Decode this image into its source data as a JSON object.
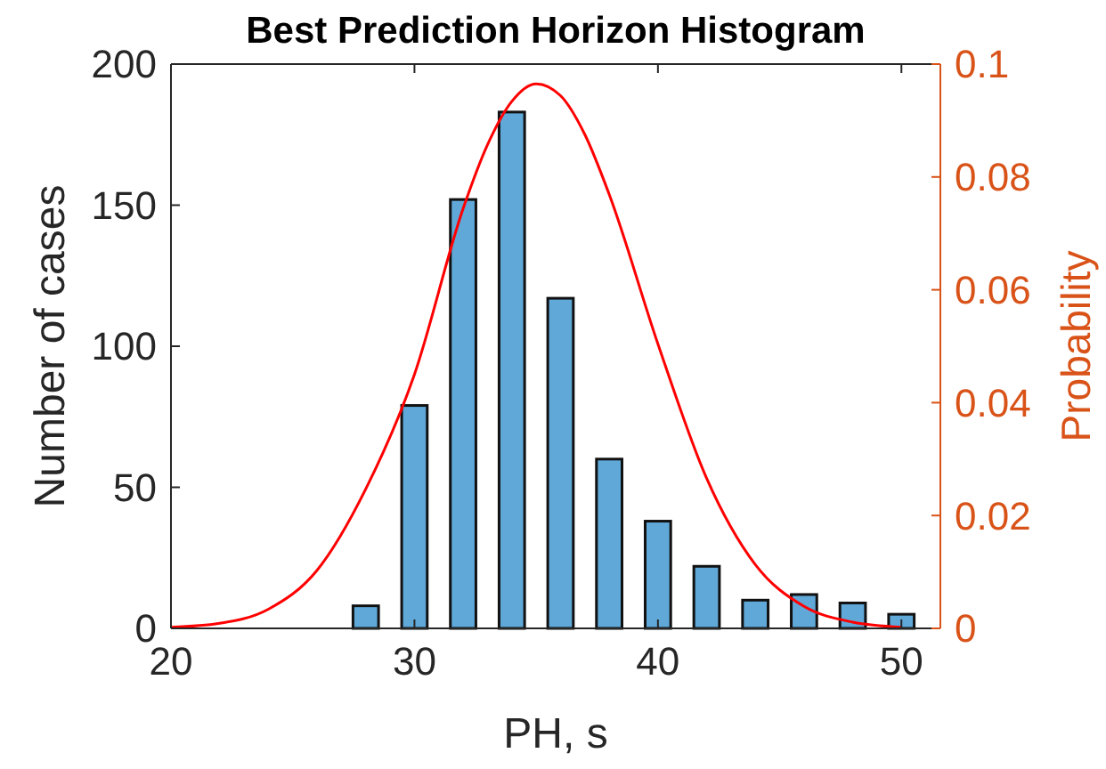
{
  "chart_data": {
    "type": "bar",
    "title": "Best Prediction Horizon Histogram",
    "xlabel": "PH, s",
    "ylabel": "Number of cases",
    "y2label": "Probability",
    "x": [
      28,
      30,
      32,
      34,
      36,
      38,
      40,
      42,
      44,
      46,
      48,
      50
    ],
    "xlim": [
      20,
      51.6
    ],
    "xticks": [
      20,
      30,
      40,
      50
    ],
    "ylim": [
      0,
      200
    ],
    "yticks": [
      0,
      50,
      100,
      150,
      200
    ],
    "y2lim": [
      0,
      0.1
    ],
    "y2ticks": [
      0,
      0.02,
      0.04,
      0.06,
      0.08,
      0.1
    ],
    "series": [
      {
        "color": "#5fa8d8",
        "values": [
          8,
          79,
          152,
          183,
          117,
          60,
          38,
          22,
          10,
          12,
          9,
          5
        ]
      },
      {
        "type": "line",
        "axis": "y2",
        "color": "#ff0000",
        "x": [
          20,
          22,
          24,
          26,
          28,
          30,
          32,
          33,
          34,
          35,
          36,
          37,
          38,
          40,
          42,
          44,
          46,
          48,
          50
        ],
        "values": [
          0.0002,
          0.0009,
          0.0034,
          0.0103,
          0.0247,
          0.045,
          0.0744,
          0.0857,
          0.0934,
          0.0965,
          0.0944,
          0.0875,
          0.0769,
          0.0504,
          0.0266,
          0.0113,
          0.0039,
          0.0011,
          0.0002
        ]
      }
    ]
  }
}
